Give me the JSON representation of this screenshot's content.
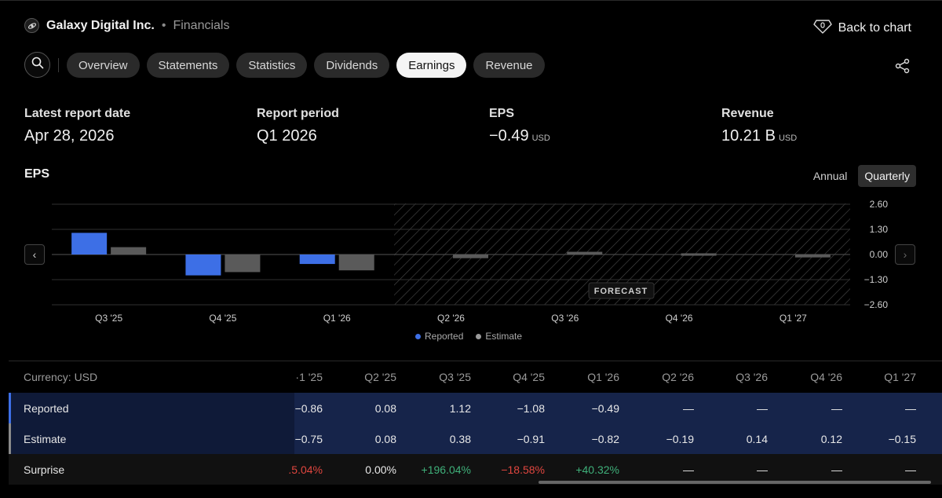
{
  "header": {
    "company": "Galaxy Digital Inc.",
    "separator": "•",
    "section": "Financials",
    "back_label": "Back to chart"
  },
  "nav": {
    "tabs": [
      {
        "label": "Overview",
        "active": false
      },
      {
        "label": "Statements",
        "active": false
      },
      {
        "label": "Statistics",
        "active": false
      },
      {
        "label": "Dividends",
        "active": false
      },
      {
        "label": "Earnings",
        "active": true
      },
      {
        "label": "Revenue",
        "active": false
      }
    ]
  },
  "stats": {
    "latest_report": {
      "label": "Latest report date",
      "value": "Apr 28, 2026"
    },
    "report_period": {
      "label": "Report period",
      "value": "Q1 2026"
    },
    "eps": {
      "label": "EPS",
      "value": "−0.49",
      "unit": "USD"
    },
    "revenue": {
      "label": "Revenue",
      "value": "10.21 B",
      "unit": "USD"
    }
  },
  "chart_header": {
    "title": "EPS",
    "annual": "Annual",
    "quarterly": "Quarterly",
    "forecast_label": "FORECAST"
  },
  "chart_data": {
    "type": "bar",
    "title": "EPS",
    "categories": [
      "Q3 '25",
      "Q4 '25",
      "Q1 '26",
      "Q2 '26",
      "Q3 '26",
      "Q4 '26",
      "Q1 '27"
    ],
    "series": [
      {
        "name": "Reported",
        "color": "#3d6fe6",
        "values": [
          1.12,
          -1.08,
          -0.49,
          null,
          null,
          null,
          null
        ]
      },
      {
        "name": "Estimate",
        "color": "#5a5a5a",
        "values": [
          0.38,
          -0.91,
          -0.82,
          -0.19,
          0.14,
          0.12,
          -0.15
        ]
      }
    ],
    "yticks": [
      "2.60",
      "1.30",
      "0.00",
      "−1.30",
      "−2.60"
    ],
    "ylim": [
      -2.6,
      2.6
    ],
    "forecast_from_index": 3,
    "legend_position": "bottom-center"
  },
  "legend": {
    "reported": "Reported",
    "estimate": "Estimate"
  },
  "table": {
    "currency_label": "Currency: USD",
    "columns": [
      "·1 '25",
      "Q2 '25",
      "Q3 '25",
      "Q4 '25",
      "Q1 '26",
      "Q2 '26",
      "Q3 '26",
      "Q4 '26",
      "Q1 '27"
    ],
    "rows": [
      {
        "label": "Reported",
        "values": [
          "−0.86",
          "0.08",
          "1.12",
          "−1.08",
          "−0.49",
          "—",
          "—",
          "—",
          "—"
        ]
      },
      {
        "label": "Estimate",
        "values": [
          "−0.75",
          "0.08",
          "0.38",
          "−0.91",
          "−0.82",
          "−0.19",
          "0.14",
          "0.12",
          "−0.15"
        ]
      },
      {
        "label": "Surprise",
        "values": [
          ".5.04%",
          "0.00%",
          "+196.04%",
          "−18.58%",
          "+40.32%",
          "—",
          "—",
          "—",
          "—"
        ]
      }
    ]
  },
  "colors": {
    "reported": "#3d6fe6",
    "estimate": "#5a5a5a",
    "positive": "#3fb07a",
    "negative": "#e0463f"
  }
}
